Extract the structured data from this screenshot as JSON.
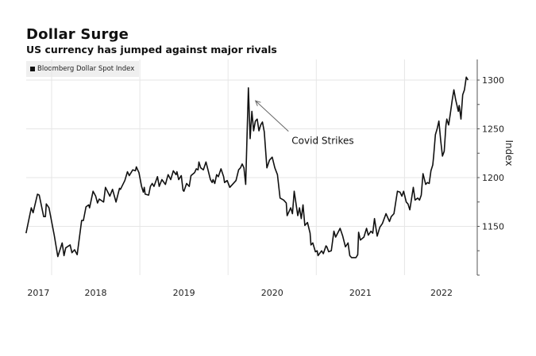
{
  "chart_data": {
    "type": "line",
    "title": "Dollar Surge",
    "subtitle": "US currency has jumped against major rivals",
    "xlabel": "",
    "ylabel": "Index",
    "ylim": [
      1100,
      1322
    ],
    "xlim": [
      2017.71,
      2022.78
    ],
    "grid": true,
    "legend_position": "top-left",
    "y_ticks": [
      1150,
      1200,
      1250,
      1300
    ],
    "y_tick_labels": [
      "1150",
      "1200",
      "1250",
      "1300"
    ],
    "y_minor_ticks": [
      1100,
      1125,
      1175,
      1225,
      1275
    ],
    "x_gridlines": [
      2018,
      2019,
      2020,
      2021,
      2022
    ],
    "x_tick_labels": [
      {
        "label": "2017",
        "pos": 2017.85
      },
      {
        "label": "2018",
        "pos": 2018.5
      },
      {
        "label": "2019",
        "pos": 2019.5
      },
      {
        "label": "2020",
        "pos": 2020.5
      },
      {
        "label": "2021",
        "pos": 2021.5
      },
      {
        "label": "2022",
        "pos": 2022.42
      }
    ],
    "series": [
      {
        "name": "Bloomberg Dollar Spot Index",
        "color": "#111111",
        "x": [
          2017.71,
          2017.77,
          2017.79,
          2017.84,
          2017.86,
          2017.91,
          2017.93,
          2017.94,
          2017.97,
          2018.03,
          2018.07,
          2018.12,
          2018.14,
          2018.16,
          2018.21,
          2018.23,
          2018.26,
          2018.29,
          2018.34,
          2018.36,
          2018.39,
          2018.42,
          2018.43,
          2018.47,
          2018.5,
          2018.52,
          2018.54,
          2018.59,
          2018.61,
          2018.66,
          2018.69,
          2018.73,
          2018.77,
          2018.78,
          2018.83,
          2018.86,
          2018.88,
          2018.92,
          2018.95,
          2018.96,
          2018.99,
          2019.02,
          2019.04,
          2019.05,
          2019.06,
          2019.1,
          2019.12,
          2019.14,
          2019.16,
          2019.2,
          2019.22,
          2019.25,
          2019.29,
          2019.32,
          2019.35,
          2019.38,
          2019.41,
          2019.42,
          2019.44,
          2019.47,
          2019.49,
          2019.5,
          2019.53,
          2019.56,
          2019.58,
          2019.62,
          2019.64,
          2019.66,
          2019.67,
          2019.69,
          2019.72,
          2019.75,
          2019.77,
          2019.8,
          2019.82,
          2019.83,
          2019.85,
          2019.87,
          2019.89,
          2019.92,
          2019.95,
          2019.96,
          2019.99,
          2020.02,
          2020.05,
          2020.09,
          2020.12,
          2020.14,
          2020.16,
          2020.18,
          2020.2,
          2020.23,
          2020.25,
          2020.27,
          2020.29,
          2020.31,
          2020.33,
          2020.35,
          2020.37,
          2020.39,
          2020.41,
          2020.44,
          2020.47,
          2020.5,
          2020.53,
          2020.56,
          2020.59,
          2020.63,
          2020.66,
          2020.67,
          2020.71,
          2020.73,
          2020.75,
          2020.79,
          2020.81,
          2020.83,
          2020.85,
          2020.87,
          2020.9,
          2020.93,
          2020.94,
          2020.96,
          2020.99,
          2021.01,
          2021.02,
          2021.06,
          2021.08,
          2021.11,
          2021.12,
          2021.14,
          2021.17,
          2021.2,
          2021.22,
          2021.27,
          2021.3,
          2021.33,
          2021.36,
          2021.38,
          2021.4,
          2021.45,
          2021.47,
          2021.48,
          2021.5,
          2021.54,
          2021.57,
          2021.59,
          2021.62,
          2021.64,
          2021.66,
          2021.69,
          2021.72,
          2021.75,
          2021.79,
          2021.83,
          2021.85,
          2021.88,
          2021.92,
          2021.95,
          2021.97,
          2021.99,
          2022.02,
          2022.04,
          2022.06,
          2022.1,
          2022.12,
          2022.15,
          2022.17,
          2022.19,
          2022.21,
          2022.24,
          2022.26,
          2022.28,
          2022.3,
          2022.32,
          2022.33,
          2022.35,
          2022.37,
          2022.39,
          2022.41,
          2022.43,
          2022.45,
          2022.47,
          2022.48,
          2022.5,
          2022.52,
          2022.54,
          2022.56,
          2022.58,
          2022.61,
          2022.62,
          2022.64,
          2022.66,
          2022.68,
          2022.7,
          2022.72
        ],
        "values": [
          1143,
          1169,
          1164,
          1183,
          1182,
          1160,
          1160,
          1173,
          1169,
          1141,
          1119,
          1133,
          1120,
          1128,
          1131,
          1123,
          1126,
          1121,
          1156,
          1156,
          1170,
          1172,
          1169,
          1186,
          1181,
          1174,
          1178,
          1175,
          1190,
          1181,
          1188,
          1175,
          1189,
          1188,
          1197,
          1206,
          1202,
          1208,
          1207,
          1211,
          1205,
          1191,
          1185,
          1190,
          1183,
          1182,
          1191,
          1194,
          1191,
          1201,
          1191,
          1198,
          1193,
          1203,
          1198,
          1207,
          1203,
          1206,
          1198,
          1202,
          1187,
          1186,
          1194,
          1191,
          1202,
          1205,
          1209,
          1208,
          1216,
          1210,
          1208,
          1216,
          1209,
          1198,
          1195,
          1198,
          1194,
          1203,
          1201,
          1209,
          1201,
          1195,
          1197,
          1190,
          1193,
          1197,
          1208,
          1210,
          1214,
          1210,
          1193,
          1292,
          1240,
          1268,
          1248,
          1258,
          1260,
          1248,
          1254,
          1257,
          1247,
          1210,
          1218,
          1221,
          1210,
          1203,
          1179,
          1177,
          1174,
          1161,
          1169,
          1163,
          1186,
          1161,
          1169,
          1158,
          1172,
          1151,
          1154,
          1143,
          1131,
          1133,
          1124,
          1125,
          1120,
          1125,
          1122,
          1130,
          1129,
          1124,
          1125,
          1145,
          1139,
          1148,
          1140,
          1129,
          1133,
          1120,
          1118,
          1118,
          1121,
          1144,
          1136,
          1139,
          1148,
          1141,
          1145,
          1143,
          1158,
          1140,
          1149,
          1153,
          1163,
          1155,
          1160,
          1163,
          1186,
          1185,
          1181,
          1186,
          1175,
          1173,
          1167,
          1190,
          1177,
          1179,
          1177,
          1182,
          1204,
          1193,
          1195,
          1194,
          1207,
          1213,
          1222,
          1244,
          1250,
          1258,
          1238,
          1222,
          1227,
          1254,
          1260,
          1254,
          1266,
          1279,
          1290,
          1280,
          1268,
          1274,
          1260,
          1285,
          1290,
          1303,
          1300
        ]
      }
    ],
    "annotations": [
      {
        "text": "Covid Strikes",
        "points_to": {
          "x": 2020.23,
          "y": 1282
        },
        "text_at": {
          "x": 2020.73,
          "y": 1245
        }
      }
    ]
  }
}
